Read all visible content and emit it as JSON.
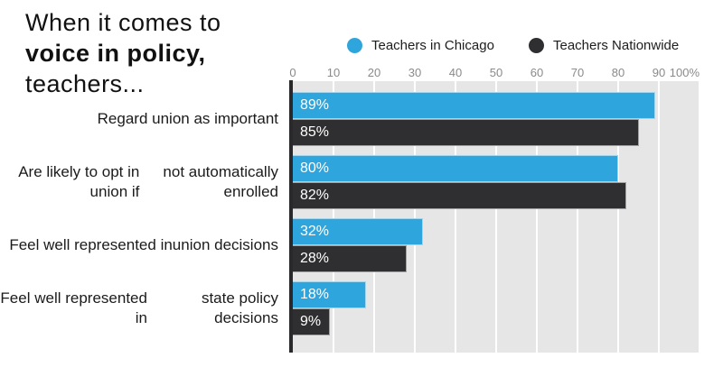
{
  "title": {
    "line1": "When it comes to",
    "line2": "voice in policy,",
    "line3": "teachers..."
  },
  "legend": [
    {
      "label": "Teachers in Chicago",
      "color": "#2EA5DC"
    },
    {
      "label": "Teachers Nationwide",
      "color": "#2F2F31"
    }
  ],
  "colors": {
    "chicago_blue": "#2EA5DC",
    "nationwide_dark": "#2F2F31",
    "plot_background": "#E6E6E6",
    "gridline": "#FFFFFF",
    "axis_line": "#29292B",
    "tick_text": "#8A8A8A",
    "value_text": "#FFFFFF"
  },
  "chart_data": {
    "type": "bar",
    "orientation": "horizontal",
    "title": "When it comes to voice in policy, teachers...",
    "categories": [
      [
        "Regard union as important"
      ],
      [
        "Are likely to opt in union if",
        "not automatically enrolled"
      ],
      [
        "Feel well represented in",
        "union decisions"
      ],
      [
        "Feel well represented in",
        "state policy decisions"
      ]
    ],
    "series": [
      {
        "name": "Teachers in Chicago",
        "color": "#2EA5DC",
        "values": [
          89,
          80,
          32,
          18
        ]
      },
      {
        "name": "Teachers Nationwide",
        "color": "#2F2F31",
        "values": [
          85,
          82,
          28,
          9
        ]
      }
    ],
    "value_suffix": "%",
    "axis": {
      "min": 0,
      "max": 100,
      "tick_labels": [
        "0",
        "10",
        "20",
        "30",
        "40",
        "50",
        "60",
        "70",
        "80",
        "90",
        "100%"
      ]
    },
    "legend_position": "top",
    "grid": true
  }
}
